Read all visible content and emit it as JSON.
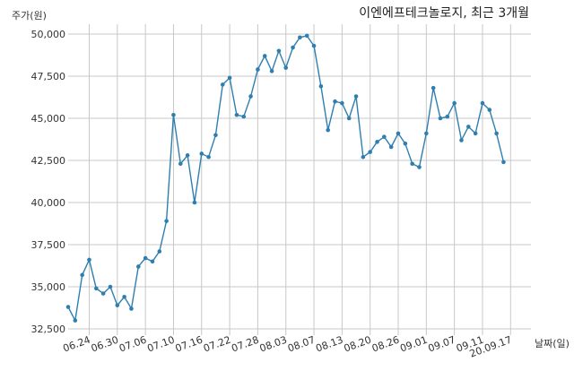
{
  "chart_data": {
    "type": "line",
    "title": "이엔에프테크놀로지, 최근 3개월",
    "ylabel": "주가(원)",
    "xlabel": "날짜(일)",
    "ylim": [
      32500,
      50500
    ],
    "yticks": [
      32500,
      35000,
      37500,
      40000,
      42500,
      45000,
      47500,
      50000
    ],
    "ytick_labels": [
      "32,500",
      "35,000",
      "37,500",
      "40,000",
      "42,500",
      "45,000",
      "47,500",
      "50,000"
    ],
    "xtick_labels": [
      "06.24",
      "06.30",
      "07.06",
      "07.10",
      "07.16",
      "07.22",
      "07.28",
      "08.03",
      "08.07",
      "08.13",
      "08.20",
      "08.26",
      "09.01",
      "09.07",
      "09.11",
      "20.09.17"
    ],
    "xtick_index": [
      3,
      7,
      11,
      15,
      19,
      23,
      27,
      31,
      35,
      39,
      43,
      47,
      51,
      55,
      59,
      63
    ],
    "grid": true,
    "line_color": "#2e7fb0",
    "series": [
      {
        "values": [
          33800,
          33000,
          35700,
          36600,
          34900,
          34600,
          35000,
          33900,
          34400,
          33700,
          36200,
          36700,
          36500,
          37100,
          38900,
          45200,
          42300,
          42800,
          40000,
          42900,
          42700,
          44000,
          47000,
          47400,
          45200,
          45100,
          46300,
          47900,
          48700,
          47800,
          49000,
          48000,
          49200,
          49800,
          49900,
          49300,
          46900,
          44300,
          46000,
          45900,
          45000,
          46300,
          42700,
          43000,
          43600,
          43900,
          43300,
          44100,
          43500,
          42300,
          42100,
          44100,
          46800,
          45000,
          45100,
          45900,
          43700,
          44500,
          44100,
          45900,
          45500,
          44100,
          42400
        ]
      }
    ]
  }
}
